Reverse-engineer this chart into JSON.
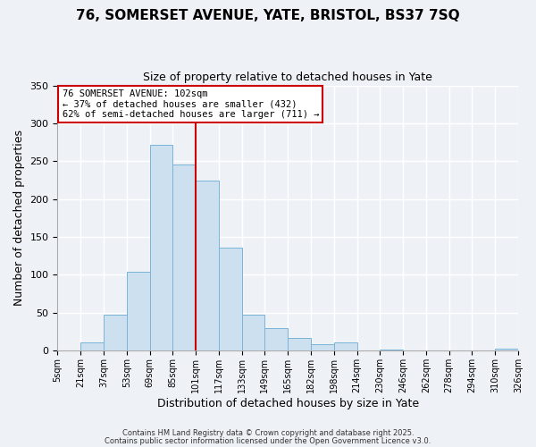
{
  "title_line1": "76, SOMERSET AVENUE, YATE, BRISTOL, BS37 7SQ",
  "title_line2": "Size of property relative to detached houses in Yate",
  "xlabel": "Distribution of detached houses by size in Yate",
  "ylabel": "Number of detached properties",
  "bar_labels": [
    "5sqm",
    "21sqm",
    "37sqm",
    "53sqm",
    "69sqm",
    "85sqm",
    "101sqm",
    "117sqm",
    "133sqm",
    "149sqm",
    "165sqm",
    "182sqm",
    "198sqm",
    "214sqm",
    "230sqm",
    "246sqm",
    "262sqm",
    "278sqm",
    "294sqm",
    "310sqm",
    "326sqm"
  ],
  "bar_values": [
    0,
    10,
    47,
    104,
    272,
    245,
    224,
    136,
    47,
    30,
    17,
    8,
    10,
    0,
    1,
    0,
    0,
    0,
    0,
    2
  ],
  "bar_color": "#cce0f0",
  "bar_edge_color": "#7ab4d8",
  "ylim": [
    0,
    350
  ],
  "yticks": [
    0,
    50,
    100,
    150,
    200,
    250,
    300,
    350
  ],
  "vline_color": "#cc0000",
  "annotation_title": "76 SOMERSET AVENUE: 102sqm",
  "annotation_line2": "← 37% of detached houses are smaller (432)",
  "annotation_line3": "62% of semi-detached houses are larger (711) →",
  "annotation_box_color": "#cc0000",
  "footnote_line1": "Contains HM Land Registry data © Crown copyright and database right 2025.",
  "footnote_line2": "Contains public sector information licensed under the Open Government Licence v3.0.",
  "background_color": "#eef2f7",
  "grid_color": "#ffffff"
}
